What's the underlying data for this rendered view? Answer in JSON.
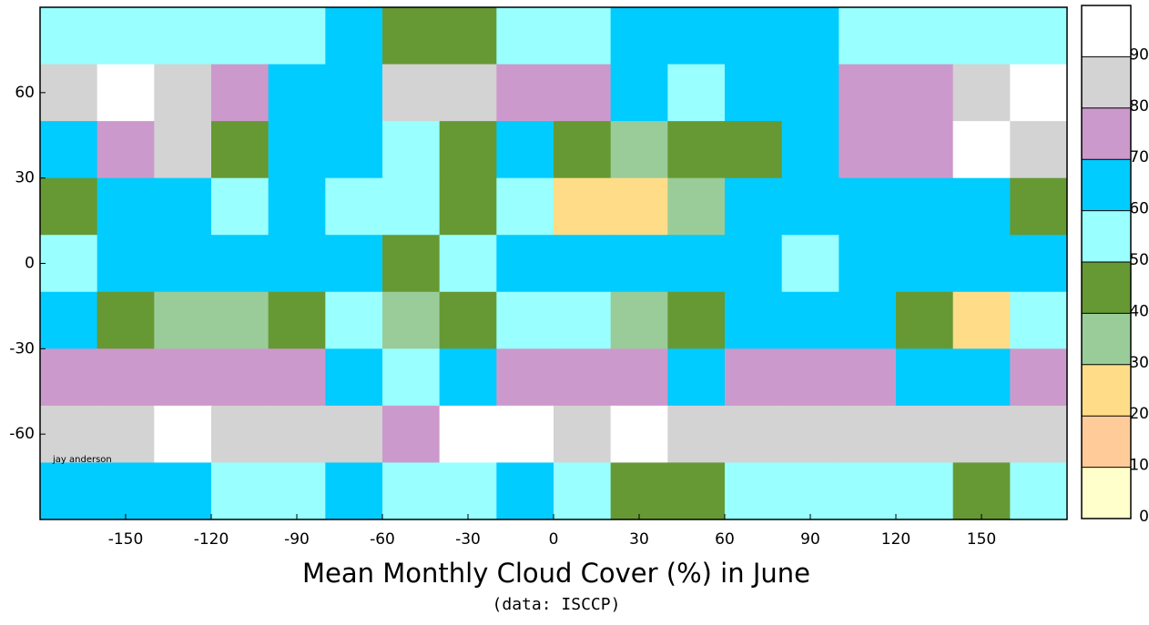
{
  "chart_data": {
    "type": "map",
    "title": "Mean Monthly Cloud Cover (%) in June",
    "subtitle": "(data: ISCCP)",
    "credit": "jay anderson",
    "xlim": [
      -180,
      180
    ],
    "ylim": [
      -90,
      90
    ],
    "xticks": [
      -150,
      -120,
      -90,
      -60,
      -30,
      0,
      30,
      60,
      90,
      120,
      150
    ],
    "yticks": [
      -60,
      -30,
      0,
      30,
      60
    ],
    "cloud_cover": [
      [
        50,
        50,
        50,
        50,
        50,
        60,
        40,
        40,
        50,
        50,
        60,
        60,
        60,
        60,
        50,
        50,
        50,
        50
      ],
      [
        80,
        90,
        80,
        70,
        60,
        60,
        80,
        80,
        70,
        70,
        60,
        50,
        60,
        60,
        70,
        70,
        80,
        90
      ],
      [
        60,
        70,
        80,
        40,
        60,
        60,
        50,
        40,
        60,
        40,
        30,
        40,
        40,
        60,
        70,
        70,
        90,
        80
      ],
      [
        40,
        60,
        60,
        50,
        60,
        50,
        50,
        40,
        50,
        20,
        20,
        30,
        60,
        60,
        60,
        60,
        60,
        40
      ],
      [
        50,
        60,
        60,
        60,
        60,
        60,
        40,
        50,
        60,
        60,
        60,
        60,
        60,
        50,
        60,
        60,
        60,
        60
      ],
      [
        60,
        40,
        30,
        30,
        40,
        50,
        30,
        40,
        50,
        50,
        30,
        40,
        60,
        60,
        60,
        40,
        20,
        50
      ],
      [
        70,
        70,
        70,
        70,
        70,
        60,
        50,
        60,
        70,
        70,
        70,
        60,
        70,
        70,
        70,
        60,
        60,
        70
      ],
      [
        80,
        80,
        90,
        80,
        80,
        80,
        70,
        90,
        90,
        80,
        90,
        80,
        80,
        80,
        80,
        80,
        80,
        80
      ],
      [
        60,
        60,
        60,
        50,
        50,
        60,
        50,
        50,
        60,
        50,
        40,
        40,
        50,
        50,
        50,
        50,
        40,
        50
      ]
    ],
    "colorbar": {
      "clim": [
        0,
        100
      ],
      "ticks": [
        0,
        10,
        20,
        30,
        40,
        50,
        60,
        70,
        80,
        90
      ],
      "colors": [
        "#ffffcc",
        "#ffcc99",
        "#ffdd88",
        "#99cc99",
        "#669933",
        "#99ffff",
        "#00ccff",
        "#cc99cc",
        "#d3d3d3",
        "#ffffff"
      ]
    }
  }
}
